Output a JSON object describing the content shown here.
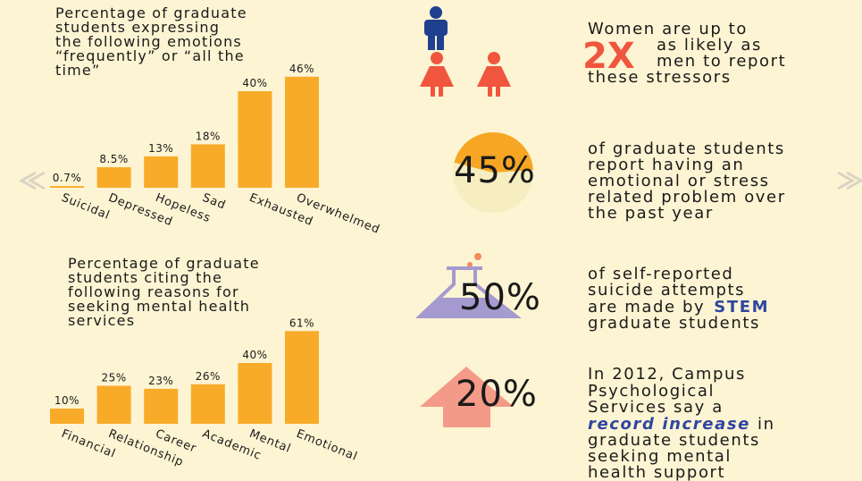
{
  "chart_data": [
    {
      "type": "bar",
      "title_lines": [
        "Percentage of graduate",
        "students expressing",
        "the following emotions",
        "“frequently” or “all the",
        "time”"
      ],
      "categories": [
        "Suicidal",
        "Depressed",
        "Hopeless",
        "Sad",
        "Exhausted",
        "Overwhelmed"
      ],
      "values": [
        0.7,
        8.5,
        13,
        18,
        40,
        46
      ],
      "value_labels": [
        "0.7%",
        "8.5%",
        "13%",
        "18%",
        "40%",
        "46%"
      ],
      "color": "#f8ab29"
    },
    {
      "type": "bar",
      "title_lines": [
        "Percentage of graduate",
        "students citing the",
        "following reasons for",
        "seeking mental health",
        "services"
      ],
      "categories": [
        "Financial",
        "Relationship",
        "Career",
        "Academic",
        "Mental",
        "Emotional"
      ],
      "values": [
        10,
        25,
        23,
        26,
        40,
        61
      ],
      "value_labels": [
        "10%",
        "25%",
        "23%",
        "26%",
        "40%",
        "61%"
      ],
      "color": "#f8ab29"
    }
  ],
  "facts": [
    {
      "lines": [
        "Women are up to",
        "as likely as",
        "men to report",
        "these stressors"
      ],
      "big": "2X"
    },
    {
      "value": 45,
      "value_label": "45%",
      "lines": [
        "of graduate students",
        "report having an",
        "emotional or stress",
        "related problem over",
        "the past year"
      ]
    },
    {
      "big": "50%",
      "lines": [
        "of self-reported",
        "suicide attempts",
        "are made by",
        "graduate students"
      ],
      "highlight": "STEM"
    },
    {
      "big": "20%",
      "lines": [
        "In 2012, Campus",
        "Psychological",
        "Services say a",
        "graduate students",
        "seeking mental",
        "health support"
      ],
      "highlight": "record increase",
      "after": "in"
    }
  ]
}
